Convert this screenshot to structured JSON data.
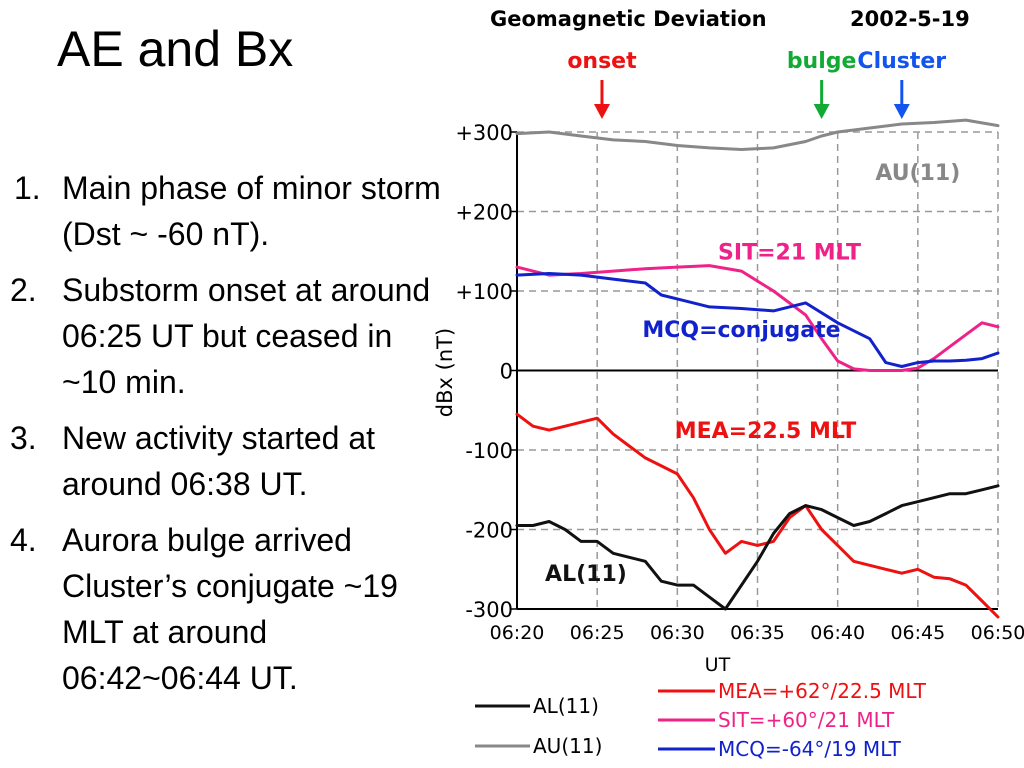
{
  "slide": {
    "title": "AE and Bx",
    "bullets": [
      {
        "num": "1.",
        "text": "Main phase of minor storm (Dst ~ -60 nT)."
      },
      {
        "num": "2.",
        "text": "Substorm onset at around 06:25 UT but ceased in ~10 min."
      },
      {
        "num": "3.",
        "text": "New activity started at around 06:38 UT."
      },
      {
        "num": "4.",
        "text": "Aurora bulge arrived Cluster’s conjugate ~19 MLT at around 06:42~06:44 UT."
      }
    ]
  },
  "chart_data": {
    "type": "line",
    "title": "Geomagnetic Deviation",
    "date": "2002-5-19",
    "xlabel": "UT",
    "ylabel": "dBx (nT)",
    "x_ticks": [
      "06:20",
      "06:25",
      "06:30",
      "06:35",
      "06:40",
      "06:45",
      "06:50"
    ],
    "x_tick_minutes": [
      0,
      5,
      10,
      15,
      20,
      25,
      30
    ],
    "y_ticks": [
      300,
      200,
      100,
      0,
      -100,
      -200,
      -300
    ],
    "y_tick_labels": [
      "+300",
      "+200",
      "+100",
      "0",
      "-100",
      "-200",
      "-300"
    ],
    "xlim_minutes": [
      0,
      30
    ],
    "ylim": [
      -300,
      300
    ],
    "grid": true,
    "events": [
      {
        "label": "onset",
        "minute": 5.3,
        "color": "#ee1111"
      },
      {
        "label": "bulge",
        "minute": 19,
        "color": "#11aa33"
      },
      {
        "label": "Cluster",
        "minute": 24,
        "color": "#1155ee"
      }
    ],
    "series": [
      {
        "key": "au",
        "name": "AU(11)",
        "color": "#888888",
        "x": [
          0,
          2,
          4,
          6,
          8,
          10,
          12,
          14,
          16,
          18,
          19,
          20,
          22,
          24,
          26,
          28,
          30
        ],
        "y": [
          298,
          300,
          295,
          290,
          288,
          283,
          280,
          278,
          280,
          288,
          295,
          300,
          305,
          310,
          312,
          315,
          308
        ]
      },
      {
        "key": "sit",
        "name": "SIT=+60°/21 MLT",
        "color": "#ee2288",
        "x": [
          0,
          2,
          4,
          6,
          8,
          10,
          12,
          14,
          16,
          18,
          19,
          20,
          21,
          22,
          23,
          24,
          25,
          26,
          27,
          28,
          29,
          30
        ],
        "y": [
          130,
          120,
          122,
          125,
          128,
          130,
          132,
          125,
          100,
          70,
          40,
          12,
          2,
          0,
          0,
          0,
          3,
          15,
          30,
          45,
          60,
          55
        ]
      },
      {
        "key": "mcq",
        "name": "MCQ=-64°/19 MLT",
        "color": "#1122cc",
        "x": [
          0,
          2,
          4,
          6,
          8,
          9,
          10,
          11,
          12,
          14,
          16,
          18,
          20,
          22,
          23,
          24,
          25,
          26,
          27,
          28,
          29,
          30
        ],
        "y": [
          120,
          122,
          120,
          115,
          110,
          95,
          90,
          85,
          80,
          78,
          75,
          85,
          60,
          40,
          10,
          5,
          10,
          12,
          12,
          13,
          15,
          22
        ]
      },
      {
        "key": "mea",
        "name": "MEA=+62°/22.5 MLT",
        "color": "#ee1111",
        "x": [
          0,
          1,
          2,
          3,
          4,
          5,
          6,
          7,
          8,
          9,
          10,
          11,
          12,
          13,
          14,
          15,
          16,
          17,
          18,
          19,
          20,
          21,
          22,
          23,
          24,
          25,
          26,
          27,
          28,
          29,
          30
        ],
        "y": [
          -55,
          -70,
          -75,
          -70,
          -65,
          -60,
          -80,
          -95,
          -110,
          -120,
          -130,
          -160,
          -200,
          -230,
          -215,
          -220,
          -215,
          -185,
          -170,
          -200,
          -220,
          -240,
          -245,
          -250,
          -255,
          -250,
          -260,
          -262,
          -270,
          -290,
          -310
        ]
      },
      {
        "key": "al",
        "name": "AL(11)",
        "color": "#111111",
        "x": [
          0,
          1,
          2,
          3,
          4,
          5,
          6,
          7,
          8,
          9,
          10,
          11,
          12,
          13,
          14,
          15,
          16,
          17,
          18,
          19,
          20,
          21,
          22,
          23,
          24,
          25,
          26,
          27,
          28,
          29,
          30
        ],
        "y": [
          -195,
          -195,
          -190,
          -200,
          -215,
          -215,
          -230,
          -235,
          -240,
          -265,
          -270,
          -270,
          -285,
          -300,
          -270,
          -240,
          -205,
          -180,
          -170,
          -175,
          -185,
          -195,
          -190,
          -180,
          -170,
          -165,
          -160,
          -155,
          -155,
          -150,
          -145
        ]
      }
    ],
    "inline_labels": [
      {
        "text": "AU(11)",
        "color": "#888888",
        "minute": 25,
        "value": 250
      },
      {
        "text": "SIT=21 MLT",
        "color": "#ee2288",
        "minute": 17,
        "value": 150
      },
      {
        "text": "MCQ=conjugate",
        "color": "#1122cc",
        "minute": 14,
        "value": 52
      },
      {
        "text": "MEA=22.5 MLT",
        "color": "#ee1111",
        "minute": 15.5,
        "value": -75
      },
      {
        "text": "AL(11)",
        "color": "#111111",
        "minute": 4.3,
        "value": -255
      }
    ],
    "legend": {
      "placement": "bottom",
      "left": [
        {
          "label": "AL(11)",
          "color": "#111111"
        },
        {
          "label": "AU(11)",
          "color": "#888888"
        }
      ],
      "right": [
        {
          "label": "MEA=+62°/22.5 MLT",
          "color": "#ee1111"
        },
        {
          "label": "SIT=+60°/21 MLT",
          "color": "#ee2288"
        },
        {
          "label": "MCQ=-64°/19 MLT",
          "color": "#1122cc"
        }
      ]
    }
  }
}
